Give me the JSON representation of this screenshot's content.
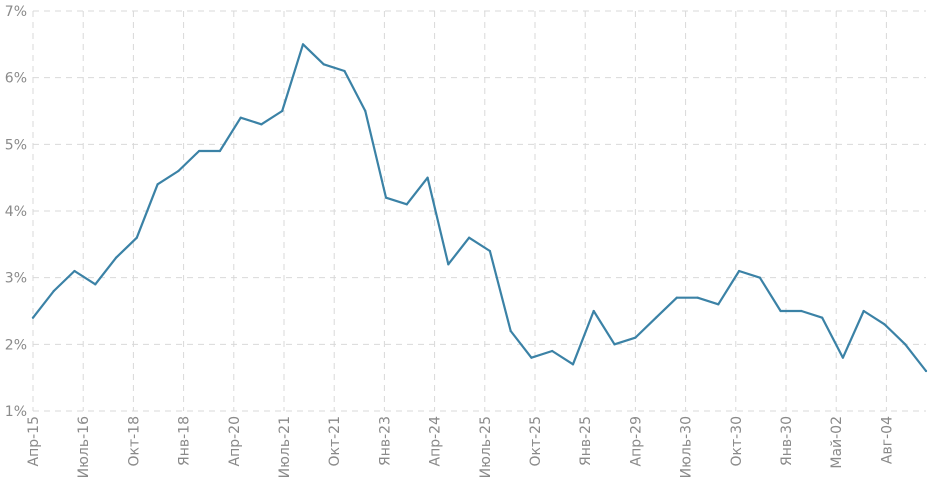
{
  "chart_data": {
    "type": "line",
    "title": "",
    "xlabel": "",
    "ylabel": "",
    "ylim": [
      1,
      7
    ],
    "y_ticks": [
      "1%",
      "2%",
      "3%",
      "4%",
      "5%",
      "6%",
      "7%"
    ],
    "x_tick_labels": [
      "Апр-15",
      "Июль-16",
      "Окт-18",
      "Янв-18",
      "Апр-20",
      "Июль-21",
      "Окт-21",
      "Янв-23",
      "Апр-24",
      "Июль-25",
      "Окт-25",
      "Янв-25",
      "Апр-29",
      "Июль-30",
      "Окт-30",
      "Янв-30",
      "Май-02",
      "Авг-04"
    ],
    "grid": true,
    "line_color": "#3b82a6",
    "series": [
      {
        "values": [
          2.4,
          2.8,
          3.1,
          2.9,
          3.3,
          3.6,
          4.4,
          4.6,
          4.9,
          4.9,
          5.4,
          5.3,
          5.5,
          6.5,
          6.2,
          6.1,
          5.5,
          4.2,
          4.1,
          4.5,
          3.2,
          3.6,
          3.4,
          2.2,
          1.8,
          1.9,
          1.7,
          2.5,
          2.0,
          2.1,
          2.4,
          2.7,
          2.7,
          2.6,
          3.1,
          3.0,
          2.5,
          2.5,
          2.4,
          1.8,
          2.5,
          2.3,
          2.0,
          1.6
        ]
      }
    ]
  }
}
